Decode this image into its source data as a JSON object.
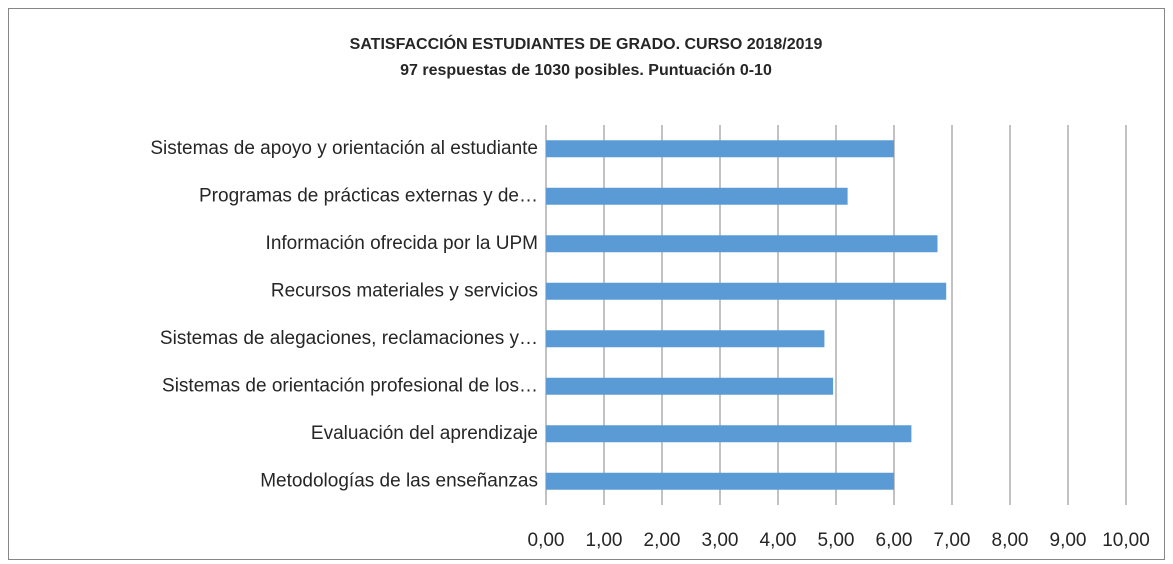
{
  "chart_data": {
    "type": "barh",
    "title": "SATISFACCIÓN ESTUDIANTES DE GRADO. CURSO 2018/2019",
    "subtitle": "97 respuestas de 1030 posibles. Puntuación 0-10",
    "categories": [
      "Sistemas de apoyo y orientación al estudiante",
      "Programas de prácticas externas y de…",
      "Información ofrecida por la UPM",
      "Recursos materiales y servicios",
      "Sistemas de alegaciones, reclamaciones y…",
      "Sistemas de orientación profesional de los…",
      "Evaluación del aprendizaje",
      "Metodologías de las enseñanzas"
    ],
    "values": [
      6.0,
      5.2,
      6.75,
      6.9,
      4.8,
      4.95,
      6.3,
      6.0
    ],
    "color": "#5b9bd5",
    "xlim": [
      0,
      10
    ],
    "xticks": [
      {
        "value": 0,
        "label": "0,00"
      },
      {
        "value": 1,
        "label": "1,00"
      },
      {
        "value": 2,
        "label": "2,00"
      },
      {
        "value": 3,
        "label": "3,00"
      },
      {
        "value": 4,
        "label": "4,00"
      },
      {
        "value": 5,
        "label": "5,00"
      },
      {
        "value": 6,
        "label": "6,00"
      },
      {
        "value": 7,
        "label": "7,00"
      },
      {
        "value": 8,
        "label": "8,00"
      },
      {
        "value": 9,
        "label": "9,00"
      },
      {
        "value": 10,
        "label": "10,00"
      }
    ],
    "grid": true
  }
}
